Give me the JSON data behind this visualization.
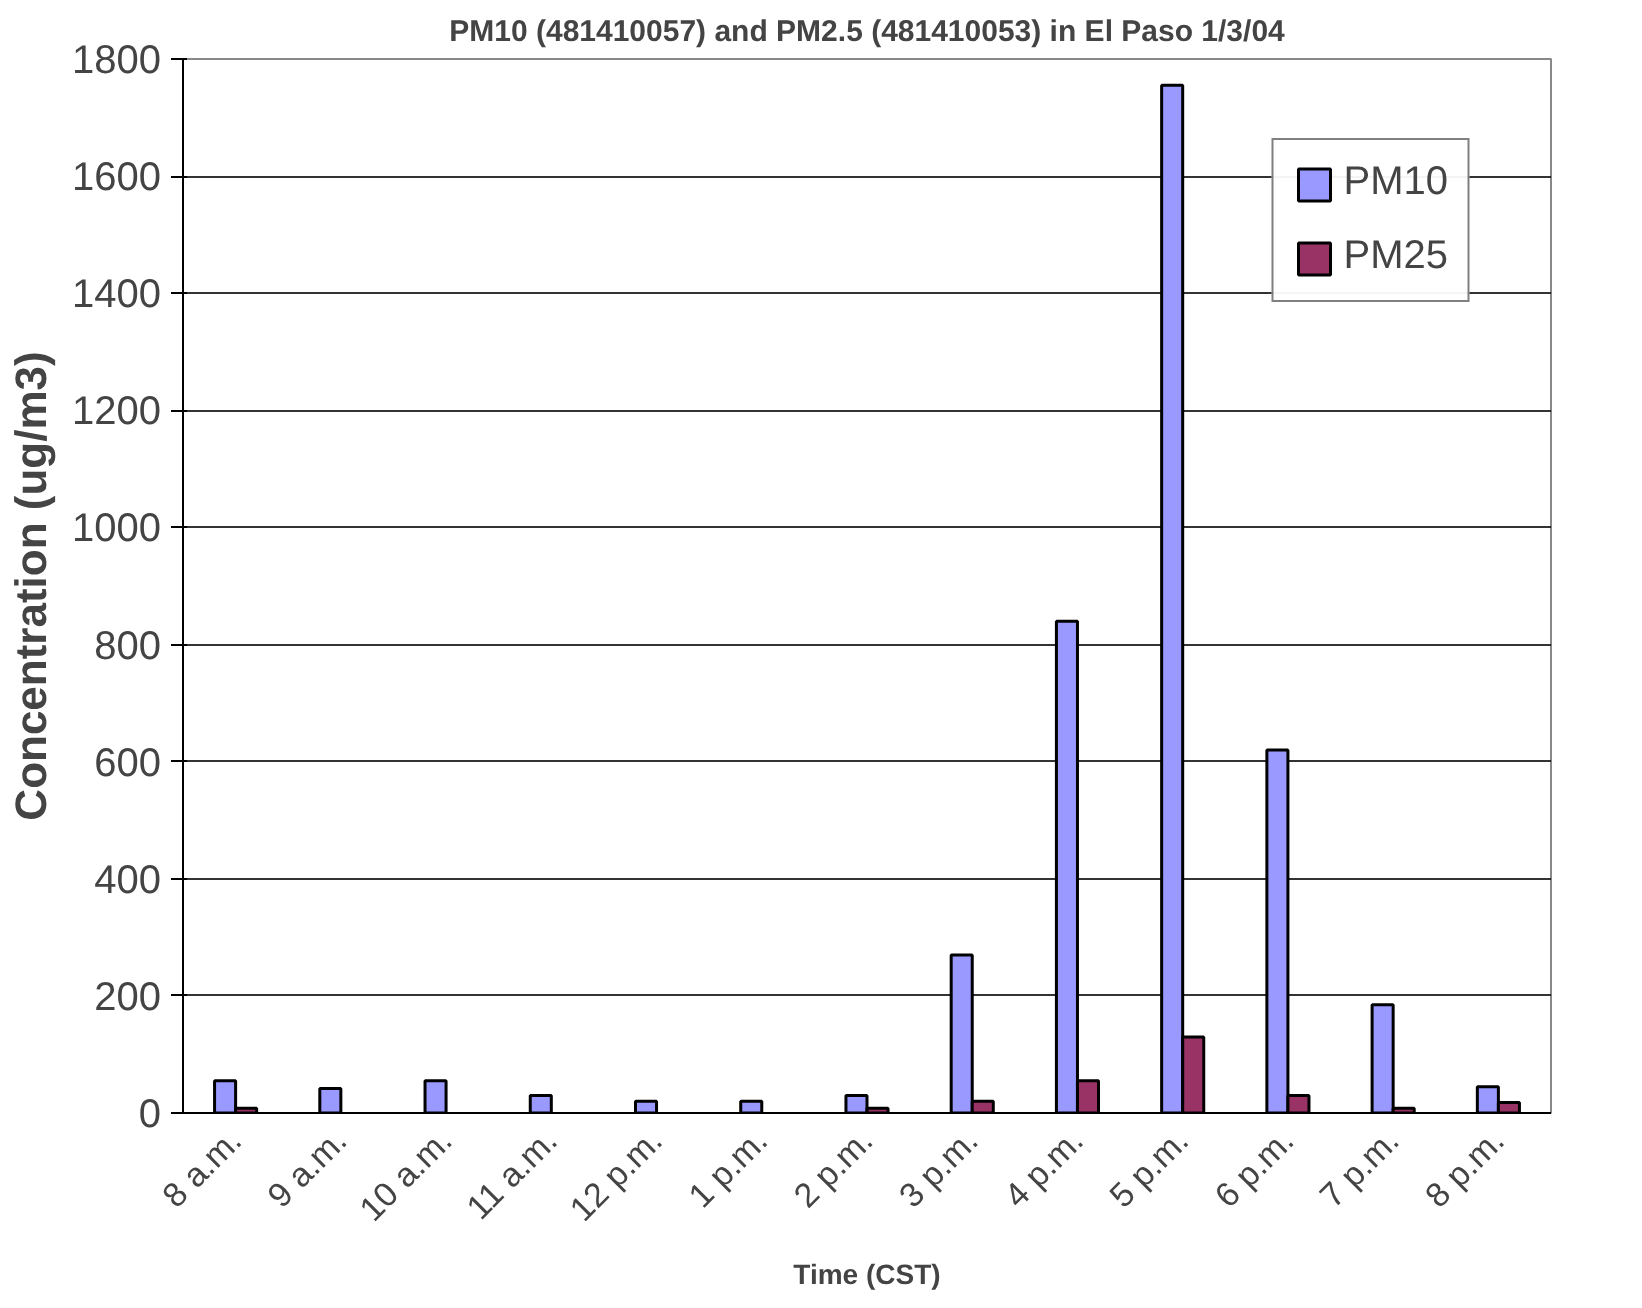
{
  "chart_data": {
    "type": "bar",
    "title": "PM10 (481410057) and PM2.5 (481410053) in El Paso 1/3/04",
    "xlabel": "Time (CST)",
    "ylabel": "Concentration (ug/m3)",
    "categories": [
      "8 a.m.",
      "9 a.m.",
      "10 a.m.",
      "11 a.m.",
      "12 p.m.",
      "1 p.m.",
      "2 p.m.",
      "3 p.m.",
      "4 p.m.",
      "5 p.m.",
      "6 p.m.",
      "7 p.m.",
      "8 p.m."
    ],
    "series": [
      {
        "name": "PM10",
        "color": "#9999ff",
        "values": [
          55,
          42,
          55,
          30,
          20,
          20,
          30,
          270,
          840,
          1755,
          620,
          185,
          45
        ]
      },
      {
        "name": "PM25",
        "color": "#993366",
        "values": [
          8,
          null,
          null,
          null,
          null,
          null,
          8,
          20,
          55,
          130,
          30,
          8,
          18
        ]
      }
    ],
    "ylim": [
      0,
      1800
    ],
    "yticks": [
      0,
      200,
      400,
      600,
      800,
      1000,
      1200,
      1400,
      1600,
      1800
    ],
    "grid": "y",
    "legend": "top right"
  }
}
